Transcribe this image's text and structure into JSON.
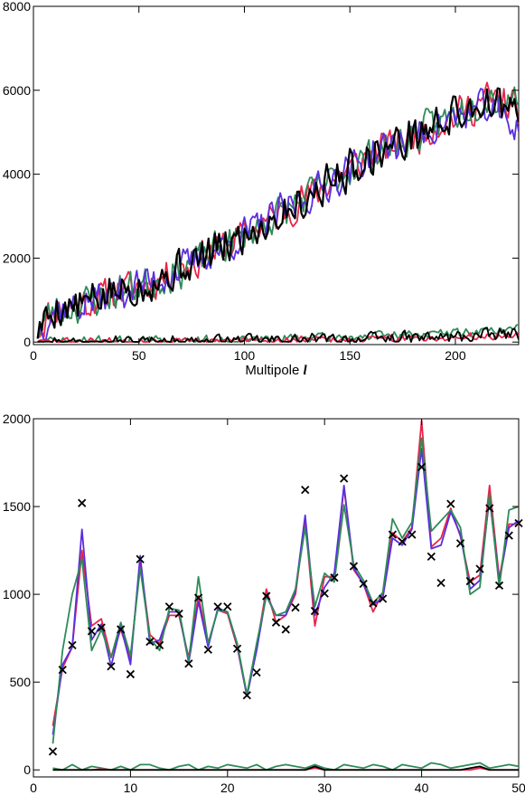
{
  "colors": {
    "red": "#e8254a",
    "blue": "#5a2ee0",
    "green": "#2e8b57",
    "black": "#000000"
  },
  "chart_data": [
    {
      "type": "line",
      "xlabel": "Multipole",
      "xlabel_symbol": "l",
      "xlim": [
        0,
        230
      ],
      "ylim": [
        -60,
        8000
      ],
      "xticks": [
        0,
        50,
        100,
        150,
        200
      ],
      "yticks": [
        0,
        2000,
        4000,
        6000,
        8000
      ],
      "xtick_labels": [
        "0",
        "50",
        "100",
        "150",
        "200"
      ],
      "ytick_labels": [
        "0",
        "2000",
        "4000",
        "6000",
        "8000"
      ],
      "grid": false,
      "legend": "none",
      "series": [
        {
          "color_key": "red",
          "trend": [
            [
              2,
              300
            ],
            [
              10,
              800
            ],
            [
              20,
              850
            ],
            [
              40,
              1200
            ],
            [
              60,
              1500
            ],
            [
              80,
              2000
            ],
            [
              100,
              2550
            ],
            [
              120,
              3150
            ],
            [
              140,
              3800
            ],
            [
              160,
              4450
            ],
            [
              180,
              4900
            ],
            [
              200,
              5400
            ],
            [
              215,
              5800
            ],
            [
              230,
              5600
            ]
          ],
          "noise": 380,
          "seed": 11,
          "x_start": 2,
          "x_end": 230
        },
        {
          "color_key": "green",
          "trend": [
            [
              2,
              300
            ],
            [
              10,
              800
            ],
            [
              20,
              850
            ],
            [
              40,
              1200
            ],
            [
              60,
              1500
            ],
            [
              80,
              2000
            ],
            [
              100,
              2550
            ],
            [
              120,
              3150
            ],
            [
              140,
              3800
            ],
            [
              160,
              4450
            ],
            [
              180,
              4900
            ],
            [
              200,
              5450
            ],
            [
              215,
              5850
            ],
            [
              230,
              5800
            ]
          ],
          "noise": 380,
          "seed": 23,
          "x_start": 2,
          "x_end": 230
        },
        {
          "color_key": "blue",
          "trend": [
            [
              2,
              300
            ],
            [
              10,
              800
            ],
            [
              20,
              850
            ],
            [
              40,
              1200
            ],
            [
              60,
              1500
            ],
            [
              80,
              2000
            ],
            [
              100,
              2550
            ],
            [
              120,
              3150
            ],
            [
              140,
              3800
            ],
            [
              160,
              4450
            ],
            [
              180,
              4900
            ],
            [
              200,
              5350
            ],
            [
              215,
              5600
            ],
            [
              230,
              5100
            ]
          ],
          "noise": 380,
          "seed": 37,
          "x_start": 2,
          "x_end": 230
        },
        {
          "color_key": "black",
          "trend": [
            [
              2,
              300
            ],
            [
              10,
              800
            ],
            [
              20,
              850
            ],
            [
              40,
              1200
            ],
            [
              60,
              1500
            ],
            [
              80,
              2000
            ],
            [
              100,
              2550
            ],
            [
              120,
              3150
            ],
            [
              140,
              3800
            ],
            [
              160,
              4450
            ],
            [
              180,
              4900
            ],
            [
              200,
              5400
            ],
            [
              215,
              5750
            ],
            [
              230,
              5400
            ]
          ],
          "noise": 420,
          "seed": 5,
          "x_start": 2,
          "x_end": 230
        },
        {
          "color_key": "green",
          "trend": [
            [
              2,
              10
            ],
            [
              100,
              60
            ],
            [
              150,
              120
            ],
            [
              200,
              220
            ],
            [
              230,
              320
            ]
          ],
          "noise": 100,
          "seed": 71,
          "x_start": 2,
          "x_end": 230,
          "floor": 0
        },
        {
          "color_key": "red",
          "trend": [
            [
              2,
              5
            ],
            [
              100,
              30
            ],
            [
              150,
              60
            ],
            [
              200,
              110
            ],
            [
              230,
              180
            ]
          ],
          "noise": 80,
          "seed": 83,
          "x_start": 2,
          "x_end": 230,
          "floor": 0
        },
        {
          "color_key": "black",
          "trend": [
            [
              2,
              0
            ],
            [
              100,
              20
            ],
            [
              150,
              60
            ],
            [
              200,
              120
            ],
            [
              230,
              200
            ]
          ],
          "noise": 140,
          "seed": 97,
          "x_start": 2,
          "x_end": 230,
          "floor": 0
        }
      ]
    },
    {
      "type": "line",
      "xlabel": "Multipole",
      "xlabel_symbol": "l",
      "xlim": [
        0,
        50
      ],
      "ylim": [
        -40,
        2000
      ],
      "xticks": [
        0,
        10,
        20,
        30,
        40,
        50
      ],
      "yticks": [
        0,
        500,
        1000,
        1500,
        2000
      ],
      "xtick_labels": [
        "0",
        "10",
        "20",
        "30",
        "40",
        "50"
      ],
      "ytick_labels": [
        "0",
        "500",
        "1000",
        "1500",
        "2000"
      ],
      "grid": false,
      "legend": "none",
      "x": [
        2,
        3,
        4,
        5,
        6,
        7,
        8,
        9,
        10,
        11,
        12,
        13,
        14,
        15,
        16,
        17,
        18,
        19,
        20,
        21,
        22,
        23,
        24,
        25,
        26,
        27,
        28,
        29,
        30,
        31,
        32,
        33,
        34,
        35,
        36,
        37,
        38,
        39,
        40,
        41,
        42,
        43,
        44,
        45,
        46,
        47,
        48,
        49,
        50
      ],
      "series": [
        {
          "color_key": "red",
          "values": [
            250,
            580,
            700,
            1250,
            820,
            860,
            640,
            800,
            630,
            1180,
            770,
            720,
            880,
            880,
            640,
            990,
            720,
            910,
            890,
            700,
            420,
            700,
            1030,
            840,
            880,
            1000,
            1420,
            820,
            1100,
            1100,
            1610,
            1140,
            1060,
            900,
            1010,
            1350,
            1300,
            1380,
            1990,
            1270,
            1320,
            1490,
            1330,
            1070,
            1110,
            1620,
            1090,
            1400,
            1400
          ]
        },
        {
          "color_key": "blue",
          "values": [
            200,
            600,
            700,
            1370,
            740,
            830,
            590,
            820,
            600,
            1220,
            720,
            740,
            900,
            900,
            610,
            960,
            700,
            920,
            900,
            710,
            420,
            680,
            1000,
            880,
            880,
            1020,
            1450,
            880,
            1040,
            1120,
            1620,
            1150,
            1060,
            940,
            980,
            1320,
            1280,
            1370,
            1830,
            1260,
            1280,
            1470,
            1340,
            1030,
            1080,
            1550,
            1070,
            1380,
            1420
          ]
        },
        {
          "color_key": "green",
          "values": [
            150,
            680,
            1000,
            1200,
            680,
            800,
            640,
            840,
            650,
            1150,
            750,
            680,
            920,
            910,
            620,
            1100,
            720,
            910,
            900,
            720,
            430,
            720,
            990,
            880,
            900,
            1030,
            1380,
            930,
            1120,
            1070,
            1510,
            1170,
            1080,
            950,
            1010,
            1430,
            1320,
            1410,
            1890,
            1360,
            1420,
            1480,
            1380,
            1000,
            1040,
            1570,
            1040,
            1480,
            1500
          ]
        },
        {
          "color_key": "green",
          "values": [
            10,
            0,
            30,
            0,
            20,
            10,
            0,
            20,
            0,
            30,
            30,
            10,
            0,
            20,
            30,
            0,
            20,
            10,
            30,
            20,
            10,
            30,
            0,
            20,
            30,
            20,
            10,
            30,
            10,
            0,
            30,
            20,
            10,
            30,
            20,
            0,
            30,
            20,
            10,
            40,
            30,
            10,
            20,
            30,
            40,
            10,
            20,
            30,
            20
          ]
        },
        {
          "color_key": "red",
          "values": [
            0,
            0,
            0,
            0,
            0,
            5,
            0,
            0,
            0,
            0,
            0,
            0,
            0,
            0,
            0,
            0,
            0,
            0,
            0,
            0,
            0,
            0,
            0,
            0,
            0,
            0,
            0,
            10,
            0,
            0,
            0,
            0,
            0,
            0,
            0,
            0,
            0,
            0,
            0,
            0,
            0,
            0,
            0,
            0,
            10,
            0,
            0,
            0,
            0
          ]
        },
        {
          "color_key": "black",
          "values": [
            0,
            0,
            0,
            0,
            0,
            0,
            0,
            0,
            0,
            0,
            0,
            0,
            0,
            0,
            0,
            0,
            0,
            0,
            0,
            0,
            0,
            0,
            0,
            0,
            0,
            0,
            0,
            20,
            0,
            0,
            0,
            0,
            0,
            0,
            0,
            0,
            0,
            0,
            0,
            0,
            0,
            0,
            0,
            10,
            20,
            0,
            0,
            0,
            0
          ]
        }
      ],
      "markers": {
        "color_key": "black",
        "symbol": "x",
        "x": [
          2,
          3,
          4,
          5,
          6,
          7,
          8,
          9,
          10,
          11,
          12,
          13,
          14,
          15,
          16,
          17,
          18,
          19,
          20,
          21,
          22,
          23,
          24,
          25,
          26,
          27,
          28,
          29,
          30,
          31,
          32,
          33,
          34,
          35,
          36,
          37,
          38,
          39,
          40,
          41,
          42,
          43,
          44,
          45,
          46,
          47,
          48,
          49,
          50
        ],
        "y": [
          105,
          570,
          710,
          1520,
          790,
          810,
          590,
          800,
          545,
          1200,
          730,
          710,
          930,
          890,
          605,
          980,
          685,
          930,
          930,
          690,
          425,
          555,
          990,
          840,
          800,
          925,
          1595,
          905,
          1005,
          1095,
          1660,
          1160,
          1060,
          950,
          975,
          1340,
          1300,
          1340,
          1725,
          1215,
          1065,
          1515,
          1290,
          1075,
          1145,
          1490,
          1050,
          1335,
          1405
        ]
      }
    }
  ]
}
